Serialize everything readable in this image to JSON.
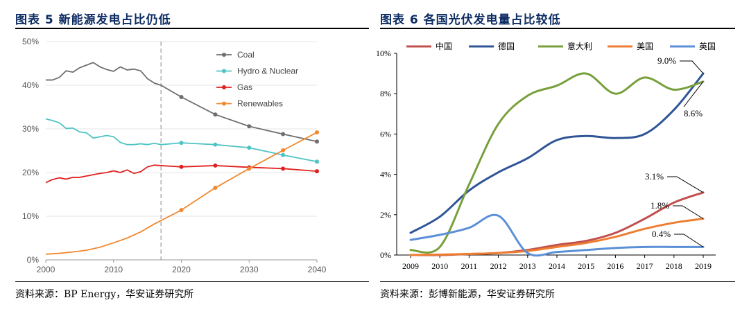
{
  "left_title": "图表 5 新能源发电占比仍低",
  "right_title": "图表 6 各国光伏发电量占比较低",
  "left_source": "资料来源：BP Energy，华安证券研究所",
  "right_source": "资料来源：彭博新能源，华安证券研究所",
  "chart_data": [
    {
      "type": "line",
      "title": "",
      "xlabel": "",
      "ylabel": "",
      "xlim": [
        2000,
        2040
      ],
      "ylim": [
        0,
        50
      ],
      "x_ticks": [
        2000,
        2010,
        2020,
        2030,
        2040
      ],
      "y_ticks": [
        "0%",
        "10%",
        "20%",
        "30%",
        "40%",
        "50%"
      ],
      "grid": true,
      "legend_position": "top-right",
      "vertical_marker_x": 2017,
      "series": [
        {
          "name": "Coal",
          "color": "#6e6e6e",
          "x": [
            2000,
            2001,
            2002,
            2003,
            2004,
            2005,
            2006,
            2007,
            2008,
            2009,
            2010,
            2011,
            2012,
            2013,
            2014,
            2015,
            2016,
            2017,
            2020,
            2025,
            2030,
            2035,
            2040
          ],
          "y": [
            41.2,
            41.2,
            41.8,
            43.3,
            43.0,
            44.0,
            44.6,
            45.2,
            44.2,
            43.6,
            43.2,
            44.2,
            43.5,
            43.7,
            43.3,
            41.5,
            40.5,
            40.0,
            37.3,
            33.3,
            30.6,
            28.8,
            27.1
          ],
          "markers_x": [
            2020,
            2025,
            2030,
            2035,
            2040
          ]
        },
        {
          "name": "Hydro & Nuclear",
          "color": "#4fc3c3",
          "x": [
            2000,
            2001,
            2002,
            2003,
            2004,
            2005,
            2006,
            2007,
            2008,
            2009,
            2010,
            2011,
            2012,
            2013,
            2014,
            2015,
            2016,
            2017,
            2020,
            2025,
            2030,
            2035,
            2040
          ],
          "y": [
            32.3,
            31.9,
            31.4,
            30.1,
            30.2,
            29.3,
            29.1,
            27.9,
            28.2,
            28.5,
            28.2,
            26.9,
            26.4,
            26.4,
            26.6,
            26.4,
            26.7,
            26.4,
            26.8,
            26.4,
            25.7,
            24.0,
            22.5
          ],
          "markers_x": [
            2020,
            2025,
            2030,
            2035,
            2040
          ]
        },
        {
          "name": "Gas",
          "color": "#e02020",
          "x": [
            2000,
            2001,
            2002,
            2003,
            2004,
            2005,
            2006,
            2007,
            2008,
            2009,
            2010,
            2011,
            2012,
            2013,
            2014,
            2015,
            2016,
            2017,
            2020,
            2025,
            2030,
            2035,
            2040
          ],
          "y": [
            17.7,
            18.4,
            18.8,
            18.5,
            18.9,
            18.9,
            19.2,
            19.5,
            19.8,
            20.0,
            20.4,
            20.0,
            20.6,
            19.8,
            20.2,
            21.3,
            21.7,
            21.6,
            21.3,
            21.6,
            21.2,
            20.9,
            20.3
          ],
          "markers_x": [
            2020,
            2025,
            2030,
            2035,
            2040
          ]
        },
        {
          "name": "Renewables",
          "color": "#f0892e",
          "x": [
            2000,
            2002,
            2004,
            2006,
            2008,
            2010,
            2012,
            2014,
            2016,
            2017,
            2020,
            2025,
            2030,
            2035,
            2040
          ],
          "y": [
            1.3,
            1.5,
            1.8,
            2.2,
            2.9,
            3.9,
            5.0,
            6.4,
            8.2,
            9.0,
            11.4,
            16.5,
            20.9,
            25.1,
            29.2
          ],
          "markers_x": [
            2020,
            2025,
            2030,
            2035,
            2040
          ]
        }
      ]
    },
    {
      "type": "line",
      "title": "",
      "xlabel": "",
      "ylabel": "",
      "xlim": [
        2009,
        2019
      ],
      "ylim": [
        0,
        10
      ],
      "x_ticks": [
        2009,
        2010,
        2011,
        2012,
        2013,
        2014,
        2015,
        2016,
        2017,
        2018,
        2019
      ],
      "y_ticks": [
        "0%",
        "2%",
        "4%",
        "6%",
        "8%",
        "10%"
      ],
      "grid": false,
      "legend_position": "top",
      "series": [
        {
          "name": "中国",
          "color": "#c0504d",
          "x": [
            2009,
            2010,
            2011,
            2012,
            2013,
            2014,
            2015,
            2016,
            2017,
            2018,
            2019
          ],
          "y": [
            0.0,
            0.0,
            0.05,
            0.1,
            0.25,
            0.5,
            0.7,
            1.1,
            1.8,
            2.6,
            3.1
          ]
        },
        {
          "name": "德国",
          "color": "#2f5597",
          "x": [
            2009,
            2010,
            2011,
            2012,
            2013,
            2014,
            2015,
            2016,
            2017,
            2018,
            2019
          ],
          "y": [
            1.1,
            1.9,
            3.2,
            4.1,
            4.8,
            5.7,
            5.9,
            5.8,
            6.0,
            7.2,
            9.0
          ]
        },
        {
          "name": "意大利",
          "color": "#77a03c",
          "x": [
            2009,
            2010,
            2011,
            2012,
            2013,
            2014,
            2015,
            2016,
            2017,
            2018,
            2019
          ],
          "y": [
            0.25,
            0.4,
            3.5,
            6.5,
            7.9,
            8.4,
            9.0,
            8.0,
            8.8,
            8.2,
            8.6
          ]
        },
        {
          "name": "美国",
          "color": "#ed7d31",
          "x": [
            2009,
            2010,
            2011,
            2012,
            2013,
            2014,
            2015,
            2016,
            2017,
            2018,
            2019
          ],
          "y": [
            0.0,
            0.02,
            0.05,
            0.1,
            0.2,
            0.4,
            0.6,
            0.9,
            1.3,
            1.6,
            1.8
          ]
        },
        {
          "name": "英国",
          "color": "#5b8fd6",
          "x": [
            2009,
            2010,
            2011,
            2012,
            2013,
            2014,
            2015,
            2016,
            2017,
            2018,
            2019
          ],
          "y": [
            0.75,
            1.0,
            1.35,
            1.95,
            0.1,
            0.15,
            0.25,
            0.35,
            0.4,
            0.4,
            0.4
          ]
        }
      ],
      "annotations": [
        "9.0%",
        "8.6%",
        "3.1%",
        "1.8%",
        "0.4%"
      ]
    }
  ]
}
